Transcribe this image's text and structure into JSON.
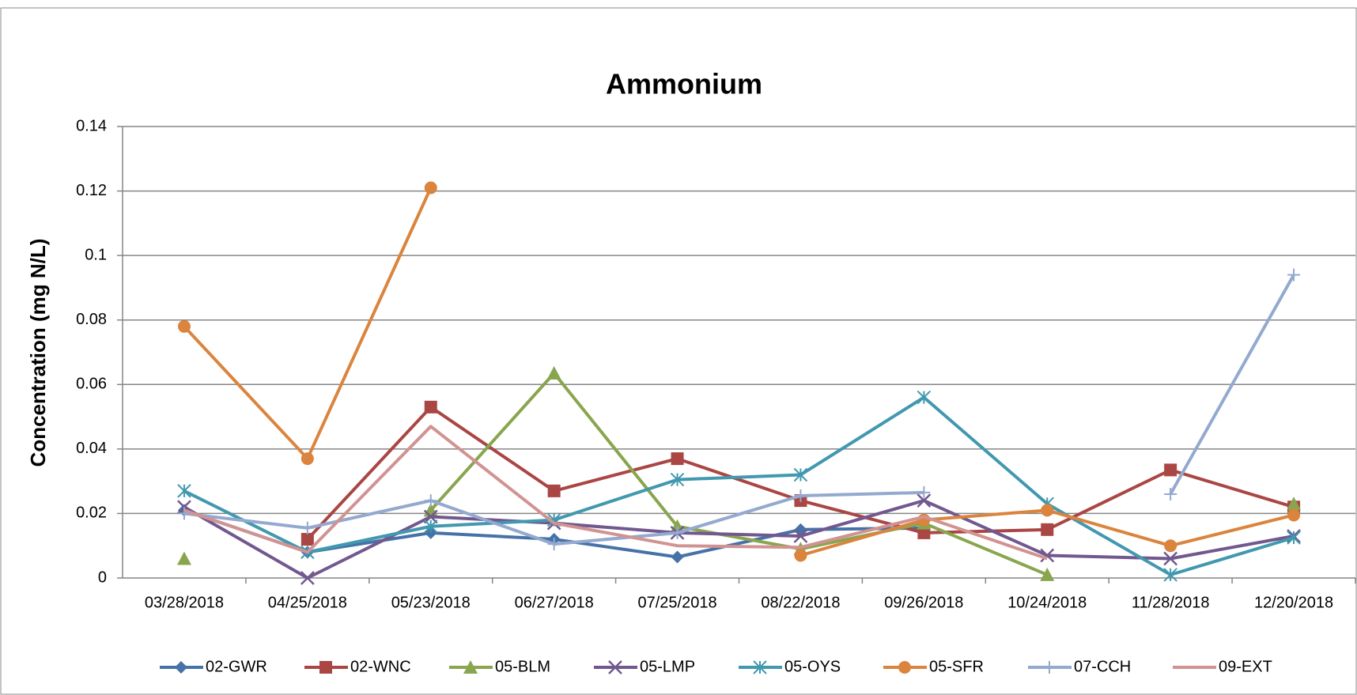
{
  "chart_data": {
    "type": "line",
    "title": "Ammonium",
    "y_label": "Concentration (mg N/L)",
    "categories": [
      "03/28/2018",
      "04/25/2018",
      "05/23/2018",
      "06/27/2018",
      "07/25/2018",
      "08/22/2018",
      "09/26/2018",
      "10/24/2018",
      "11/28/2018",
      "12/20/2018"
    ],
    "ylim": [
      0,
      0.14
    ],
    "yticks": [
      0,
      0.02,
      0.04,
      0.06,
      0.08,
      0.1,
      0.12,
      0.14
    ],
    "grid": true,
    "legend": "bottom",
    "series": [
      {
        "name": "02-GWR",
        "color": "#4572a7",
        "marker": "diamond",
        "values": [
          0.021,
          0.008,
          0.014,
          0.012,
          0.0065,
          0.015,
          0.0155,
          null,
          null,
          null
        ]
      },
      {
        "name": "02-WNC",
        "color": "#aa4643",
        "marker": "square",
        "values": [
          null,
          0.012,
          0.053,
          0.027,
          0.037,
          0.024,
          0.014,
          0.015,
          0.0335,
          0.022
        ]
      },
      {
        "name": "05-BLM",
        "color": "#89a54e",
        "marker": "triangle",
        "values": [
          0.006,
          null,
          0.021,
          0.0635,
          0.016,
          0.009,
          0.017,
          0.001,
          null,
          0.023
        ]
      },
      {
        "name": "05-LMP",
        "color": "#71588f",
        "marker": "x",
        "values": [
          0.022,
          0,
          0.019,
          0.017,
          0.014,
          0.013,
          0.024,
          0.007,
          0.006,
          0.013
        ]
      },
      {
        "name": "05-OYS",
        "color": "#4198af",
        "marker": "star",
        "values": [
          0.027,
          0.008,
          0.016,
          0.018,
          0.0305,
          0.032,
          0.056,
          0.023,
          0.001,
          0.0125
        ]
      },
      {
        "name": "05-SFR",
        "color": "#db843d",
        "marker": "circle",
        "values": [
          0.078,
          0.037,
          0.121,
          null,
          null,
          0.007,
          0.018,
          0.021,
          0.01,
          0.0195
        ]
      },
      {
        "name": "07-CCH",
        "color": "#93a9cf",
        "marker": "plus",
        "values": [
          0.02,
          0.0155,
          0.024,
          0.0105,
          0.014,
          0.0255,
          0.0265,
          null,
          0.026,
          0.094
        ]
      },
      {
        "name": "09-EXT",
        "color": "#d19392",
        "marker": "none",
        "values": [
          0.021,
          0.008,
          0.047,
          0.017,
          0.01,
          0.0095,
          0.019,
          0.006,
          null,
          0.024
        ]
      }
    ]
  }
}
